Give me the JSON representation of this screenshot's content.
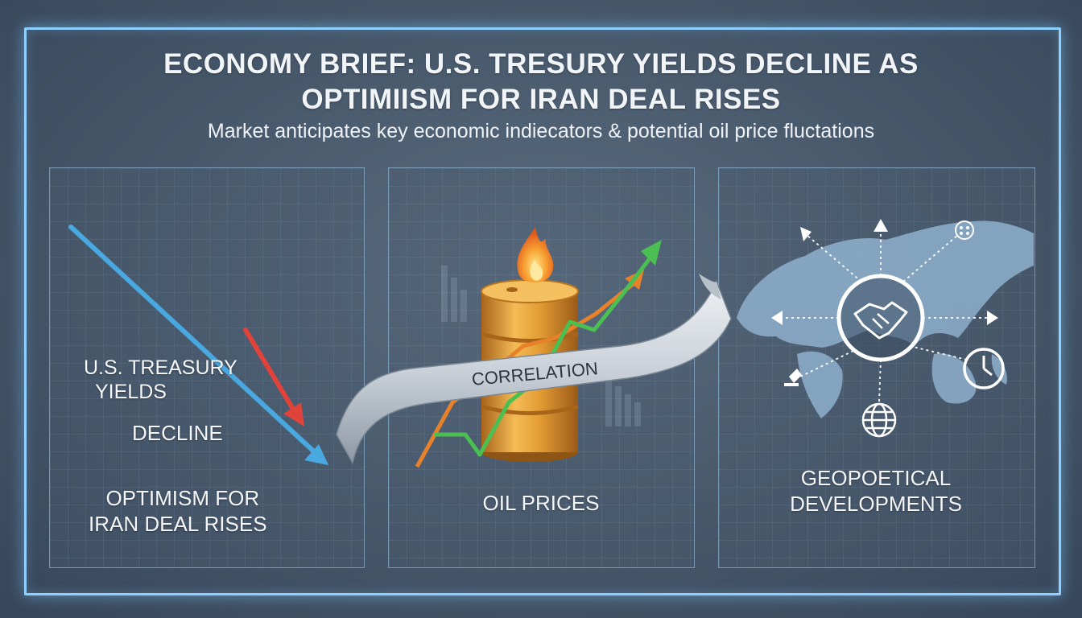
{
  "headline": {
    "line1": "ECONOMY BRIEF: U.S. TRESURY YIELDS DECLINE AS",
    "line2": "OPTIMIISM FOR IRAN DEAL RISES"
  },
  "subheadline": "Market anticipates key economic indiecators & potential oil price fluctations",
  "panel_left": {
    "label_treasury_line1": "U.S. TREASURY",
    "label_treasury_line2": "YIELDS",
    "label_decline": "DECLINE",
    "label_optimism_line1": "OPTIMISM FOR",
    "label_optimism_line2": "IRAN DEAL RISES"
  },
  "panel_middle": {
    "ribbon_label": "CORRELATION",
    "label": "OIL PRICES"
  },
  "panel_right": {
    "label_line1": "GEOPOETICAL",
    "label_line2": "DEVELOPMENTS"
  },
  "colors": {
    "frame_glow": "#8fd0ff",
    "decline_arrow_blue": "#4aa8e0",
    "decline_arrow_red": "#e0433a",
    "rise_arrow_green": "#4cbf52",
    "rise_arrow_orange": "#e8822a",
    "barrel": "#e6a23a"
  },
  "icons": [
    "fire-icon",
    "oil-barrel-icon",
    "world-map-icon",
    "handshake-icon",
    "globe-icon",
    "clock-icon",
    "arrow-icon"
  ]
}
